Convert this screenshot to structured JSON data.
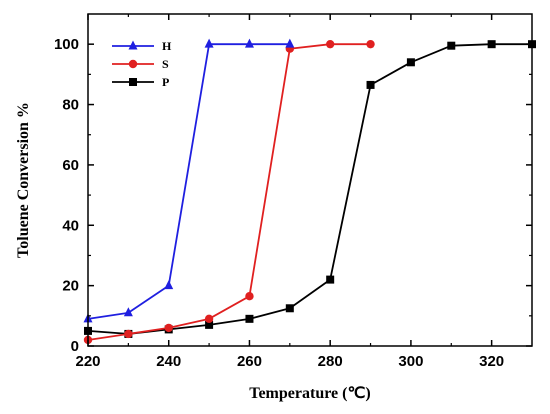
{
  "chart_data": {
    "type": "line",
    "xlabel": "Temperature (℃)",
    "ylabel": "Toluene Conversion %",
    "xlim": [
      220,
      330
    ],
    "ylim": [
      0,
      110
    ],
    "xticks": [
      220,
      240,
      260,
      280,
      300,
      320
    ],
    "yticks": [
      0,
      20,
      40,
      60,
      80,
      100
    ],
    "grid": false,
    "legend_position": "top-left",
    "series": [
      {
        "name": "H",
        "color": "#1f1fe0",
        "marker": "triangle",
        "x": [
          220,
          230,
          240,
          250,
          260,
          270
        ],
        "y": [
          9,
          11,
          20,
          100,
          100,
          100
        ]
      },
      {
        "name": "S",
        "color": "#e02020",
        "marker": "circle",
        "x": [
          220,
          230,
          240,
          250,
          260,
          270,
          280,
          290
        ],
        "y": [
          2,
          4,
          6,
          9,
          16.5,
          98.5,
          100,
          100
        ]
      },
      {
        "name": "P",
        "color": "#000000",
        "marker": "square",
        "x": [
          220,
          230,
          240,
          250,
          260,
          270,
          280,
          290,
          300,
          310,
          320,
          330
        ],
        "y": [
          5,
          4,
          5.5,
          7,
          9,
          12.5,
          22,
          86.5,
          94,
          99.5,
          100,
          100
        ]
      }
    ]
  }
}
